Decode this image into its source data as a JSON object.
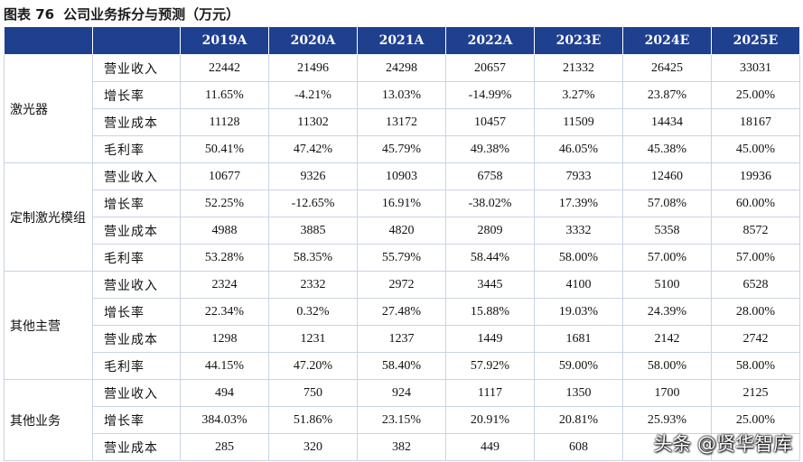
{
  "title": {
    "figure": "图表 76",
    "text": "公司业务拆分与预测（万元）"
  },
  "table": {
    "years": [
      "2019A",
      "2020A",
      "2021A",
      "2022A",
      "2023E",
      "2024E",
      "2025E"
    ],
    "groups": [
      {
        "name": "激光器",
        "rows": [
          {
            "metric": "营业收入",
            "values": [
              "22442",
              "21496",
              "24298",
              "20657",
              "21332",
              "26425",
              "33031"
            ]
          },
          {
            "metric": "增长率",
            "values": [
              "11.65%",
              "-4.21%",
              "13.03%",
              "-14.99%",
              "3.27%",
              "23.87%",
              "25.00%"
            ]
          },
          {
            "metric": "营业成本",
            "values": [
              "11128",
              "11302",
              "13172",
              "10457",
              "11509",
              "14434",
              "18167"
            ]
          },
          {
            "metric": "毛利率",
            "values": [
              "50.41%",
              "47.42%",
              "45.79%",
              "49.38%",
              "46.05%",
              "45.38%",
              "45.00%"
            ]
          }
        ]
      },
      {
        "name": "定制激光模组",
        "rows": [
          {
            "metric": "营业收入",
            "values": [
              "10677",
              "9326",
              "10903",
              "6758",
              "7933",
              "12460",
              "19936"
            ]
          },
          {
            "metric": "增长率",
            "values": [
              "52.25%",
              "-12.65%",
              "16.91%",
              "-38.02%",
              "17.39%",
              "57.08%",
              "60.00%"
            ]
          },
          {
            "metric": "营业成本",
            "values": [
              "4988",
              "3885",
              "4820",
              "2809",
              "3332",
              "5358",
              "8572"
            ]
          },
          {
            "metric": "毛利率",
            "values": [
              "53.28%",
              "58.35%",
              "55.79%",
              "58.44%",
              "58.00%",
              "57.00%",
              "57.00%"
            ]
          }
        ]
      },
      {
        "name": "其他主营",
        "rows": [
          {
            "metric": "营业收入",
            "values": [
              "2324",
              "2332",
              "2972",
              "3445",
              "4100",
              "5100",
              "6528"
            ]
          },
          {
            "metric": "增长率",
            "values": [
              "22.34%",
              "0.32%",
              "27.48%",
              "15.88%",
              "19.03%",
              "24.39%",
              "28.00%"
            ]
          },
          {
            "metric": "营业成本",
            "values": [
              "1298",
              "1231",
              "1237",
              "1449",
              "1681",
              "2142",
              "2742"
            ]
          },
          {
            "metric": "毛利率",
            "values": [
              "44.15%",
              "47.20%",
              "58.40%",
              "57.92%",
              "59.00%",
              "58.00%",
              "58.00%"
            ]
          }
        ]
      },
      {
        "name": "其他业务",
        "rows": [
          {
            "metric": "营业收入",
            "values": [
              "494",
              "750",
              "924",
              "1117",
              "1350",
              "1700",
              "2125"
            ]
          },
          {
            "metric": "增长率",
            "values": [
              "384.03%",
              "51.86%",
              "23.15%",
              "20.91%",
              "20.81%",
              "25.93%",
              "25.00%"
            ]
          },
          {
            "metric": "营业成本",
            "values": [
              "285",
              "320",
              "382",
              "449",
              "608",
              "",
              ""
            ]
          }
        ]
      }
    ]
  },
  "watermark": "头条 @贤华智库",
  "colors": {
    "header_bg": "#1f3f8f",
    "header_text": "#ffffff",
    "grid": "#c9d3e6"
  }
}
